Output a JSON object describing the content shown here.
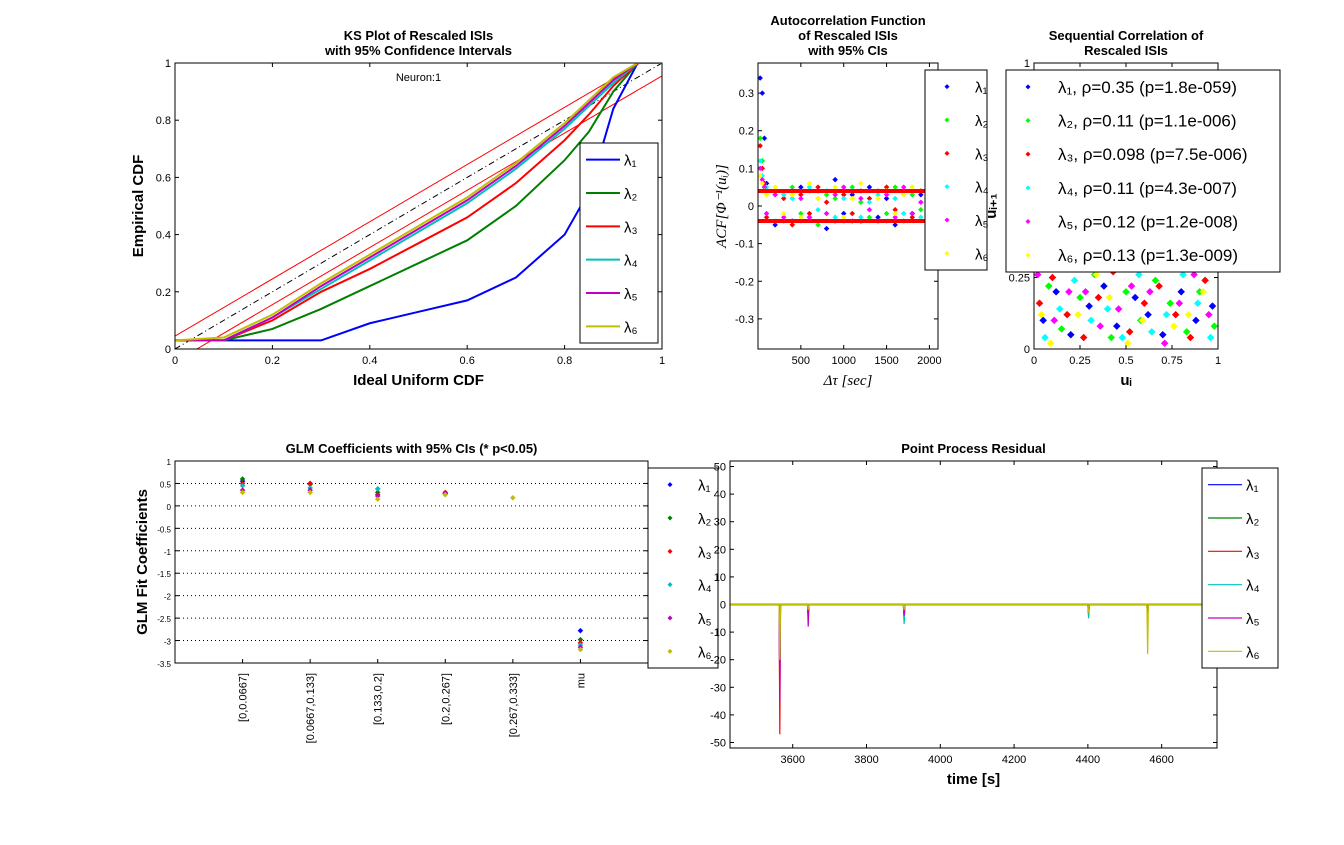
{
  "chart_data": [
    {
      "type": "line",
      "title": [
        "KS Plot of Rescaled ISIs",
        "with 95% Confidence Intervals"
      ],
      "annotation": "Neuron:1",
      "xlabel": "Ideal Uniform CDF",
      "ylabel": "Empirical CDF",
      "xlim": [
        0,
        1
      ],
      "ylim": [
        0,
        1
      ],
      "xticks": [
        0,
        0.2,
        0.4,
        0.6,
        0.8,
        1
      ],
      "yticks": [
        0,
        0.2,
        0.4,
        0.6,
        0.8,
        1
      ],
      "reference": {
        "x": [
          0,
          1
        ],
        "center": [
          0,
          1
        ],
        "upper": [
          0.045,
          1.045
        ],
        "lower": [
          -0.045,
          0.955
        ]
      },
      "x": [
        0,
        0.1,
        0.2,
        0.3,
        0.4,
        0.5,
        0.6,
        0.7,
        0.8,
        0.85,
        0.9,
        0.95,
        1
      ],
      "series": [
        {
          "name": "λ₁",
          "color": "#0000ff",
          "values": [
            0.03,
            0.03,
            0.03,
            0.03,
            0.09,
            0.13,
            0.17,
            0.25,
            0.4,
            0.55,
            0.84,
            1,
            1
          ]
        },
        {
          "name": "λ₂",
          "color": "#008000",
          "values": [
            0.03,
            0.03,
            0.07,
            0.14,
            0.22,
            0.3,
            0.38,
            0.5,
            0.66,
            0.76,
            0.9,
            1,
            1
          ]
        },
        {
          "name": "λ₃",
          "color": "#ff0000",
          "values": [
            0.03,
            0.03,
            0.1,
            0.2,
            0.28,
            0.37,
            0.46,
            0.58,
            0.73,
            0.82,
            0.92,
            1,
            1
          ]
        },
        {
          "name": "λ₄",
          "color": "#00bfbf",
          "values": [
            0.03,
            0.03,
            0.11,
            0.21,
            0.31,
            0.41,
            0.51,
            0.63,
            0.77,
            0.85,
            0.93,
            1,
            1
          ]
        },
        {
          "name": "λ₅",
          "color": "#bf00bf",
          "values": [
            0.03,
            0.03,
            0.11,
            0.22,
            0.32,
            0.42,
            0.52,
            0.64,
            0.78,
            0.86,
            0.94,
            1,
            1
          ]
        },
        {
          "name": "λ₆",
          "color": "#bfbf00",
          "values": [
            0.03,
            0.04,
            0.12,
            0.23,
            0.33,
            0.43,
            0.53,
            0.65,
            0.79,
            0.87,
            0.95,
            1,
            1
          ]
        }
      ]
    },
    {
      "type": "scatter",
      "title": [
        "Autocorrelation Function",
        "of Rescaled ISIs",
        "with 95% CIs"
      ],
      "xlabel": "Δτ [sec]",
      "ylabel": "ACF[Φ⁻¹(uᵢ)]",
      "xlim": [
        0,
        2100
      ],
      "ylim": [
        -0.38,
        0.38
      ],
      "xticks": [
        500,
        1000,
        1500,
        2000
      ],
      "yticks": [
        -0.3,
        -0.2,
        -0.1,
        0,
        0.1,
        0.2,
        0.3
      ],
      "ci_bounds": [
        -0.04,
        0.04
      ],
      "x": [
        25,
        50,
        75,
        100,
        200,
        300,
        400,
        500,
        600,
        700,
        800,
        900,
        1000,
        1100,
        1200,
        1300,
        1400,
        1500,
        1600,
        1700,
        1800,
        1900,
        2000
      ],
      "series": [
        {
          "name": "λ₁",
          "color": "#0000ff",
          "values": [
            0.34,
            0.3,
            0.18,
            0.06,
            -0.05,
            0.03,
            -0.04,
            0.05,
            -0.03,
            0.02,
            -0.06,
            0.07,
            -0.02,
            0.03,
            -0.04,
            0.05,
            -0.03,
            0.02,
            -0.05,
            0.04,
            -0.02,
            0.03,
            -0.04
          ]
        },
        {
          "name": "λ₂",
          "color": "#00ff00",
          "values": [
            0.18,
            0.12,
            0.05,
            0.04,
            0.03,
            -0.04,
            0.05,
            -0.02,
            0.04,
            -0.05,
            0.03,
            0.02,
            -0.04,
            0.05,
            0.01,
            -0.03,
            0.04,
            -0.02,
            0.05,
            -0.04,
            0.03,
            -0.01,
            0.02
          ]
        },
        {
          "name": "λ₃",
          "color": "#ff0000",
          "values": [
            0.16,
            0.1,
            0.06,
            -0.03,
            0.04,
            0.02,
            -0.05,
            0.03,
            -0.02,
            0.05,
            0.01,
            -0.04,
            0.03,
            -0.02,
            0.04,
            0.02,
            -0.04,
            0.05,
            -0.01,
            0.03,
            -0.03,
            0.04,
            0.01
          ]
        },
        {
          "name": "λ₄",
          "color": "#00ffff",
          "values": [
            0.12,
            0.08,
            0.04,
            0.05,
            -0.04,
            0.03,
            0.02,
            -0.04,
            0.05,
            -0.01,
            0.04,
            -0.03,
            0.02,
            0.04,
            -0.03,
            0.01,
            0.03,
            -0.04,
            0.02,
            -0.02,
            0.05,
            -0.03,
            0.02
          ]
        },
        {
          "name": "λ₅",
          "color": "#ff00ff",
          "values": [
            0.1,
            0.07,
            0.05,
            -0.02,
            0.03,
            -0.03,
            0.04,
            0.02,
            -0.03,
            0.04,
            -0.02,
            0.03,
            0.05,
            -0.04,
            0.02,
            -0.01,
            0.04,
            0.03,
            -0.03,
            0.05,
            -0.02,
            0.01,
            0.03
          ]
        },
        {
          "name": "λ₆",
          "color": "#ffff00",
          "values": [
            0.08,
            0.06,
            0.04,
            0.03,
            0.05,
            -0.02,
            0.03,
            -0.03,
            0.06,
            0.02,
            -0.04,
            0.05,
            -0.03,
            0.02,
            0.06,
            -0.04,
            0.02,
            0.04,
            -0.02,
            0.03,
            0.05,
            -0.04,
            0.02
          ]
        }
      ]
    },
    {
      "type": "scatter",
      "title": [
        "Sequential Correlation of",
        "Rescaled ISIs"
      ],
      "xlabel": "uᵢ",
      "ylabel": "uᵢ₊₁",
      "xlim": [
        0,
        1
      ],
      "ylim": [
        0,
        1
      ],
      "xticks": [
        0,
        0.25,
        0.5,
        0.75,
        1
      ],
      "yticks": [
        0,
        0.25,
        0.5,
        0.75,
        1
      ],
      "series": [
        {
          "name": "λ₁, ρ=0.35 (p=1.8e-059)",
          "color": "#0000ff",
          "x": [
            0.05,
            0.12,
            0.2,
            0.3,
            0.38,
            0.45,
            0.55,
            0.62,
            0.7,
            0.8,
            0.88,
            0.97
          ],
          "values": [
            0.1,
            0.2,
            0.05,
            0.15,
            0.22,
            0.08,
            0.18,
            0.12,
            0.05,
            0.2,
            0.1,
            0.15
          ]
        },
        {
          "name": "λ₂, ρ=0.11 (p=1.1e-006)",
          "color": "#00ff00",
          "x": [
            0.08,
            0.15,
            0.25,
            0.33,
            0.42,
            0.5,
            0.58,
            0.66,
            0.74,
            0.83,
            0.9,
            0.98
          ],
          "values": [
            0.22,
            0.07,
            0.18,
            0.26,
            0.04,
            0.2,
            0.1,
            0.24,
            0.16,
            0.06,
            0.2,
            0.08
          ]
        },
        {
          "name": "λ₃, ρ=0.098 (p=7.5e-006)",
          "color": "#ff0000",
          "x": [
            0.03,
            0.1,
            0.18,
            0.27,
            0.35,
            0.43,
            0.52,
            0.6,
            0.68,
            0.77,
            0.85,
            0.93
          ],
          "values": [
            0.16,
            0.25,
            0.12,
            0.04,
            0.18,
            0.27,
            0.06,
            0.16,
            0.22,
            0.12,
            0.04,
            0.24
          ]
        },
        {
          "name": "λ₄, ρ=0.11 (p=4.3e-007)",
          "color": "#00ffff",
          "x": [
            0.06,
            0.14,
            0.22,
            0.31,
            0.4,
            0.48,
            0.57,
            0.64,
            0.72,
            0.81,
            0.89,
            0.96
          ],
          "values": [
            0.04,
            0.14,
            0.24,
            0.1,
            0.14,
            0.04,
            0.26,
            0.06,
            0.12,
            0.26,
            0.16,
            0.04
          ]
        },
        {
          "name": "λ₅, ρ=0.12 (p=1.2e-008)",
          "color": "#ff00ff",
          "x": [
            0.02,
            0.11,
            0.19,
            0.28,
            0.36,
            0.46,
            0.53,
            0.63,
            0.71,
            0.79,
            0.87,
            0.95
          ],
          "values": [
            0.26,
            0.1,
            0.2,
            0.2,
            0.08,
            0.14,
            0.22,
            0.2,
            0.02,
            0.16,
            0.26,
            0.12
          ]
        },
        {
          "name": "λ₆, ρ=0.13 (p=1.3e-009)",
          "color": "#ffff00",
          "x": [
            0.04,
            0.09,
            0.17,
            0.24,
            0.34,
            0.41,
            0.51,
            0.59,
            0.67,
            0.76,
            0.84,
            0.92
          ],
          "values": [
            0.12,
            0.02,
            0.28,
            0.12,
            0.26,
            0.18,
            0.02,
            0.1,
            0.28,
            0.08,
            0.12,
            0.2
          ]
        }
      ]
    },
    {
      "type": "scatter",
      "title": [
        "GLM Coefficients with 95% CIs (* p<0.05)"
      ],
      "ylabel": "GLM Fit Coefficients",
      "categories": [
        "[0,0.0667]",
        "[0.0667,0.133]",
        "[0.133,0.2]",
        "[0.2,0.267]",
        "[0.267,0.333]",
        "mu"
      ],
      "ylim": [
        -3.5,
        1
      ],
      "yticks": [
        -3.5,
        -3,
        -2.5,
        -2,
        -1.5,
        -1,
        -0.5,
        0,
        0.5,
        1
      ],
      "grid": true,
      "series": [
        {
          "name": "λ₁",
          "color": "#0000ff",
          "values": [
            0.55,
            0.5,
            0.38,
            0.27,
            null,
            -2.78
          ]
        },
        {
          "name": "λ₂",
          "color": "#008000",
          "values": [
            0.6,
            0.48,
            0.3,
            0.28,
            null,
            -2.98
          ]
        },
        {
          "name": "λ₃",
          "color": "#ff0000",
          "values": [
            0.5,
            0.5,
            0.25,
            0.3,
            null,
            -3.05
          ]
        },
        {
          "name": "λ₄",
          "color": "#00bfbf",
          "values": [
            0.45,
            0.4,
            0.38,
            0.25,
            null,
            -3.1
          ]
        },
        {
          "name": "λ₅",
          "color": "#bf00bf",
          "values": [
            0.35,
            0.35,
            0.22,
            0.28,
            null,
            -3.15
          ]
        },
        {
          "name": "λ₆",
          "color": "#bfbf00",
          "values": [
            0.3,
            0.3,
            0.15,
            0.25,
            0.18,
            -3.2
          ]
        }
      ]
    },
    {
      "type": "line",
      "title": [
        "Point Process Residual"
      ],
      "xlabel": "time [s]",
      "xlim": [
        3430,
        4750
      ],
      "ylim": [
        -52,
        52
      ],
      "xticks": [
        3600,
        3800,
        4000,
        4200,
        4400,
        4600
      ],
      "yticks": [
        -50,
        -40,
        -30,
        -20,
        -10,
        0,
        10,
        20,
        30,
        40,
        50
      ],
      "x": [
        3430,
        3563,
        3565,
        3567,
        3640,
        3642,
        3644,
        3900,
        3902,
        3904,
        4400,
        4402,
        4404,
        4560,
        4562,
        4564,
        4720,
        4722,
        4724,
        4750
      ],
      "series": [
        {
          "name": "λ₁",
          "color": "#0000ff",
          "values": [
            0,
            0,
            -5,
            0,
            0,
            -3,
            0,
            0,
            -2,
            0,
            0,
            -4,
            0,
            0,
            -2,
            0,
            0,
            -2,
            0,
            0
          ]
        },
        {
          "name": "λ₂",
          "color": "#008000",
          "values": [
            0,
            0,
            -10,
            0,
            0,
            -4,
            0,
            0,
            -6,
            0,
            0,
            -3,
            0,
            0,
            -3,
            0,
            0,
            -3,
            0,
            0
          ]
        },
        {
          "name": "λ₃",
          "color": "#ff0000",
          "values": [
            0,
            0,
            -47,
            0,
            0,
            -5,
            0,
            0,
            -3,
            0,
            0,
            -3,
            0,
            0,
            -4,
            0,
            0,
            -4,
            0,
            0
          ]
        },
        {
          "name": "λ₄",
          "color": "#00bfbf",
          "values": [
            0,
            0,
            -28,
            0,
            0,
            -4,
            0,
            0,
            -7,
            0,
            0,
            -5,
            0,
            0,
            -3,
            0,
            0,
            -3,
            0,
            0
          ]
        },
        {
          "name": "λ₅",
          "color": "#bf00bf",
          "values": [
            0,
            0,
            -35,
            0,
            0,
            -8,
            0,
            0,
            -4,
            0,
            0,
            -3,
            0,
            0,
            -5,
            0,
            0,
            -4,
            0,
            0
          ]
        },
        {
          "name": "λ₆",
          "color": "#bfbf00",
          "values": [
            0,
            0,
            -20,
            0,
            0,
            -2,
            0,
            0,
            -2,
            0,
            0,
            -3,
            0,
            0,
            -18,
            0,
            0,
            -10,
            0,
            0
          ]
        }
      ]
    }
  ]
}
